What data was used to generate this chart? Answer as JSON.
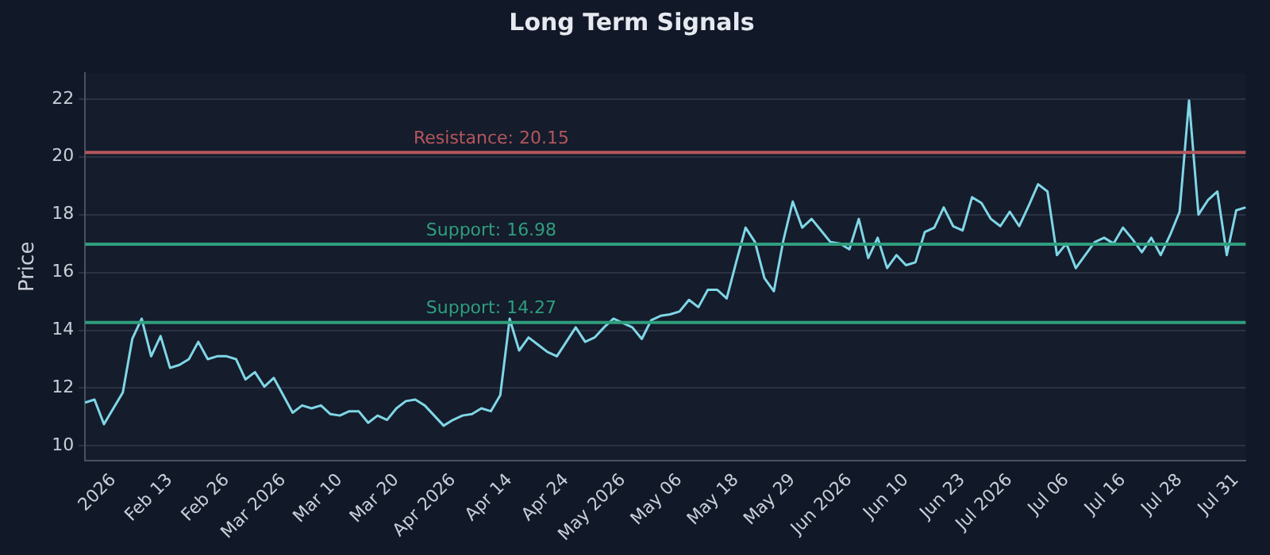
{
  "chart_data": {
    "type": "line",
    "title": "Long Term Signals",
    "ylabel": "Price",
    "categories": [
      null,
      null,
      null,
      "2026",
      null,
      null,
      null,
      null,
      null,
      "Feb 13",
      null,
      null,
      null,
      null,
      null,
      "Feb 26",
      null,
      null,
      null,
      null,
      null,
      "Mar 2026",
      null,
      null,
      null,
      null,
      null,
      "Mar 10",
      null,
      null,
      null,
      null,
      null,
      "Mar 20",
      null,
      null,
      null,
      null,
      null,
      "Apr 2026",
      null,
      null,
      null,
      null,
      null,
      "Apr 14",
      null,
      null,
      null,
      null,
      null,
      "Apr 24",
      null,
      null,
      null,
      null,
      null,
      "May 2026",
      null,
      null,
      null,
      null,
      null,
      "May 06",
      null,
      null,
      null,
      null,
      null,
      "May 18",
      null,
      null,
      null,
      null,
      null,
      "May 29",
      null,
      null,
      null,
      null,
      null,
      "Jun 2026",
      null,
      null,
      null,
      null,
      null,
      "Jun 10",
      null,
      null,
      null,
      null,
      null,
      "Jun 23",
      null,
      null,
      null,
      null,
      "Jul 2026",
      null,
      null,
      null,
      null,
      null,
      "Jul 06",
      null,
      null,
      null,
      null,
      null,
      "Jul 16",
      null,
      null,
      null,
      null,
      null,
      "Jul 28",
      null,
      null,
      null,
      null,
      null,
      "Jul 31",
      null
    ],
    "series": [
      {
        "color": "#7fd6e6",
        "values": [
          11.5,
          11.6,
          10.75,
          11.3,
          11.85,
          13.7,
          14.4,
          13.1,
          13.8,
          12.7,
          12.8,
          13.0,
          13.6,
          13.0,
          13.1,
          13.1,
          13.0,
          12.3,
          12.55,
          12.05,
          12.35,
          11.75,
          11.15,
          11.4,
          11.3,
          11.4,
          11.1,
          11.05,
          11.2,
          11.2,
          10.8,
          11.05,
          10.9,
          11.3,
          11.55,
          11.6,
          11.4,
          11.05,
          10.7,
          10.9,
          11.05,
          11.1,
          11.3,
          11.2,
          11.75,
          14.4,
          13.3,
          13.75,
          13.5,
          13.25,
          13.1,
          13.6,
          14.1,
          13.6,
          13.75,
          14.1,
          14.4,
          14.25,
          14.1,
          13.7,
          14.35,
          14.5,
          14.55,
          14.65,
          15.05,
          14.8,
          15.4,
          15.4,
          15.1,
          16.35,
          17.55,
          17.05,
          15.8,
          15.35,
          17.1,
          18.45,
          17.55,
          17.85,
          17.45,
          17.05,
          17.0,
          16.8,
          17.85,
          16.5,
          17.2,
          16.15,
          16.6,
          16.25,
          16.35,
          17.4,
          17.55,
          18.25,
          17.6,
          17.45,
          18.6,
          18.4,
          17.85,
          17.6,
          18.1,
          17.6,
          18.3,
          19.05,
          18.8,
          16.6,
          17.0,
          16.15,
          16.6,
          17.05,
          17.2,
          17.0,
          17.55,
          17.15,
          16.7,
          17.2,
          16.6,
          17.3,
          18.1,
          21.95,
          18.0,
          18.5,
          18.8,
          16.6,
          18.15,
          18.25
        ]
      }
    ],
    "ylim": [
      9.5,
      22.9
    ],
    "yticks": [
      10,
      12,
      14,
      16,
      18,
      20,
      22
    ],
    "grid": "y",
    "marker": "none",
    "line_style": "solid",
    "ref_lines": [
      {
        "axis": "y",
        "value": 20.15,
        "label": "Resistance: 20.15",
        "color": "#b5575c"
      },
      {
        "axis": "y",
        "value": 16.98,
        "label": "Support: 16.98",
        "color": "#2f9e7e"
      },
      {
        "axis": "y",
        "value": 14.27,
        "label": "Support: 14.27",
        "color": "#2f9e7e"
      }
    ]
  }
}
